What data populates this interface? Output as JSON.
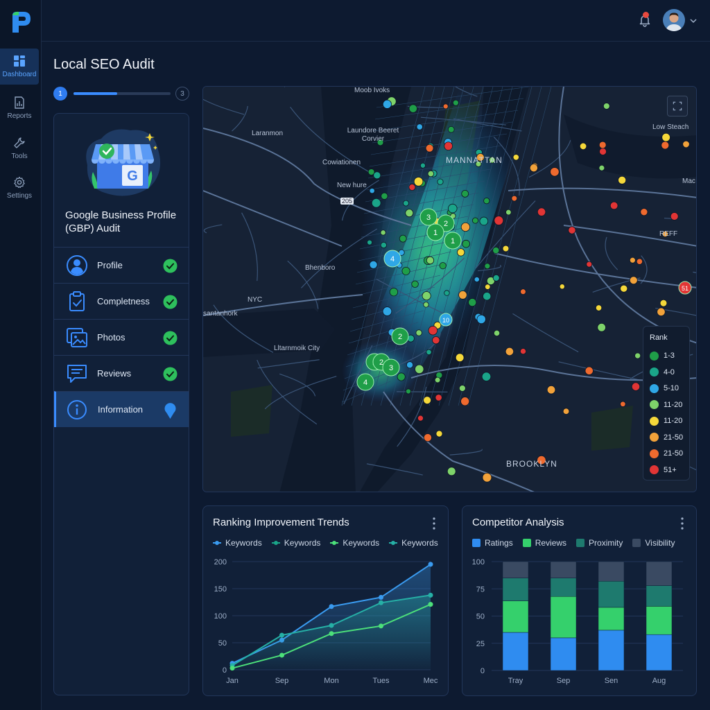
{
  "sidebar": {
    "items": [
      {
        "label": "Dashboard",
        "icon": "dashboard-icon",
        "active": true
      },
      {
        "label": "Reports",
        "icon": "reports-icon"
      },
      {
        "label": "Tools",
        "icon": "tools-icon"
      },
      {
        "label": "Settings",
        "icon": "settings-icon"
      }
    ]
  },
  "header": {
    "notification_count_visible": true
  },
  "page": {
    "title": "Local SEO Audit",
    "stepper": {
      "current": "1",
      "last": "3",
      "progress": 0.45
    }
  },
  "audit": {
    "title": "Google Business Profile (GBP) Audit",
    "items": [
      {
        "label": "Profile",
        "icon": "user-circle-icon",
        "status": "complete"
      },
      {
        "label": "Completness",
        "icon": "clipboard-check-icon",
        "status": "complete"
      },
      {
        "label": "Photos",
        "icon": "photos-icon",
        "status": "complete"
      },
      {
        "label": "Reviews",
        "icon": "chat-icon",
        "status": "complete"
      },
      {
        "label": "Information",
        "icon": "info-icon",
        "status": "in-progress",
        "active": true
      }
    ]
  },
  "map": {
    "labels": {
      "l1": "Moob Ivoks",
      "l2": "Laranmon",
      "l3": "Laundore Beeret Corvier",
      "l4": "Cowiationen",
      "l5": "MANNATTAN",
      "l6": "New hure",
      "l7": "205",
      "l8": "Bhenboro",
      "l9": "NYC",
      "l10": "santanhork",
      "l11": "Lltarnmoik City",
      "l12": "Low Steach",
      "l13": "Mac",
      "l14": "REFF",
      "l15": "BROOKLYN"
    },
    "legend": {
      "title": "Rank",
      "entries": [
        {
          "label": "1-3",
          "color": "#1f9e48"
        },
        {
          "label": "4-0",
          "color": "#1aa589"
        },
        {
          "label": "5-10",
          "color": "#2fa7e6"
        },
        {
          "label": "11-20",
          "color": "#7ed36a"
        },
        {
          "label": "11-20",
          "color": "#f5d83a"
        },
        {
          "label": "21-50",
          "color": "#f2a23a"
        },
        {
          "label": "21-50",
          "color": "#ef6a2e"
        },
        {
          "label": "51+",
          "color": "#e13535"
        }
      ]
    },
    "markers": [
      "3",
      "2",
      "1",
      "1",
      "4",
      "10",
      "2",
      "1",
      "2",
      "3",
      "4",
      "51"
    ]
  },
  "trends": {
    "title": "Ranking Improvement Trends",
    "legend": [
      "Keywords",
      "Keywords",
      "Keywords",
      "Keywords"
    ],
    "legend_colors": [
      "#3a9bf0",
      "#1aa589",
      "#4ce07a",
      "#26b0a6"
    ]
  },
  "competitor": {
    "title": "Competitor Analysis",
    "legend": [
      "Ratings",
      "Reviews",
      "Proximity",
      "Visibility"
    ],
    "legend_colors": [
      "#2f8cf0",
      "#35d06c",
      "#1e7a6e",
      "#3a4a62"
    ]
  },
  "chart_data": [
    {
      "type": "line",
      "title": "Ranking Improvement Trends",
      "categories": [
        "Jan",
        "Sep",
        "Mon",
        "Tues",
        "Mec"
      ],
      "x_index": [
        0,
        1,
        2,
        3,
        4
      ],
      "ylim": [
        0,
        200
      ],
      "yticks": [
        0,
        50,
        100,
        150,
        200
      ],
      "series": [
        {
          "name": "Keywords",
          "color": "#3a9bf0",
          "fill": true,
          "points": [
            [
              0,
              12
            ],
            [
              1,
              55
            ],
            [
              2,
              117
            ],
            [
              3,
              134
            ],
            [
              4,
              195
            ]
          ]
        },
        {
          "name": "Keywords",
          "color": "#26b0a6",
          "fill": true,
          "points": [
            [
              0,
              8
            ],
            [
              1,
              64
            ],
            [
              2,
              82
            ],
            [
              3,
              124
            ],
            [
              4,
              138
            ]
          ]
        },
        {
          "name": "Keywords",
          "color": "#4ce07a",
          "fill": false,
          "points": [
            [
              0,
              3
            ],
            [
              1,
              27
            ],
            [
              2,
              67
            ],
            [
              3,
              81
            ],
            [
              4,
              121
            ]
          ]
        }
      ],
      "grid": true
    },
    {
      "type": "bar",
      "stacked": true,
      "title": "Competitor Analysis",
      "categories": [
        "Tray",
        "Sep",
        "Sen",
        "Aug"
      ],
      "ylim": [
        0,
        100
      ],
      "yticks": [
        0,
        25,
        50,
        75,
        100
      ],
      "series": [
        {
          "name": "Ratings",
          "color": "#2f8cf0",
          "values": [
            35,
            30,
            37,
            33
          ]
        },
        {
          "name": "Reviews",
          "color": "#35d06c",
          "values": [
            29,
            38,
            21,
            26
          ]
        },
        {
          "name": "Proximity",
          "color": "#1e7a6e",
          "values": [
            21,
            17,
            24,
            19
          ]
        },
        {
          "name": "Visibility",
          "color": "#3a4a62",
          "values": [
            15,
            15,
            18,
            22
          ]
        }
      ],
      "grid": true
    }
  ]
}
